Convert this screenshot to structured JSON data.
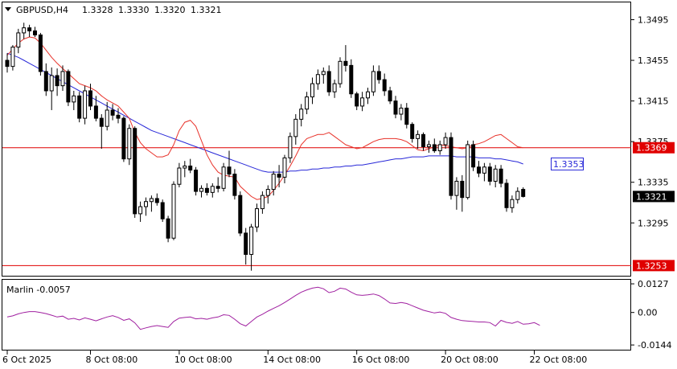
{
  "header": {
    "symbol": "GBPUSD,H4",
    "open": "1.3328",
    "high": "1.3330",
    "low": "1.3320",
    "close": "1.3321"
  },
  "colors": {
    "bull_candle": "#ffffff",
    "bear_candle": "#000000",
    "ma_fast": "#e8322a",
    "ma_slow": "#2828d8",
    "hline": "#e00000",
    "oscillator": "#a020a0",
    "price_label_bg": "#000000",
    "hline_label_bg": "#e00000",
    "ma_label_border": "#2828d8"
  },
  "price_axis": {
    "ticks": [
      "1.3495",
      "1.3455",
      "1.3415",
      "1.3375",
      "1.3335",
      "1.3295"
    ],
    "tick_values": [
      1.3495,
      1.3455,
      1.3415,
      1.3375,
      1.3335,
      1.3295
    ],
    "range": [
      1.3243,
      1.3512
    ]
  },
  "hlines": [
    {
      "value": 1.3369,
      "label": "1.3369"
    },
    {
      "value": 1.3253,
      "label": "1.3253"
    }
  ],
  "current_price": {
    "value": 1.3321,
    "label": "1.3321"
  },
  "ma_slow_label": {
    "value": 1.3353,
    "label": "1.3353"
  },
  "indicator": {
    "name": "Marlin -0.0057",
    "ticks": [
      "0.0127",
      "0.00",
      "-0.0144"
    ],
    "tick_values": [
      0.0127,
      0.0,
      -0.0144
    ],
    "range": [
      -0.0165,
      0.0145
    ]
  },
  "time_axis": {
    "labels": [
      "6 Oct 2025",
      "8 Oct 08:00",
      "10 Oct 08:00",
      "14 Oct 08:00",
      "16 Oct 08:00",
      "20 Oct 08:00",
      "22 Oct 08:00"
    ],
    "label_bars": [
      0,
      15,
      31,
      47,
      63,
      79,
      95
    ]
  },
  "chart_data": {
    "type": "candlestick",
    "series_ohlc": [
      [
        1.3455,
        1.3462,
        1.3443,
        1.3449
      ],
      [
        1.3449,
        1.347,
        1.3445,
        1.3468
      ],
      [
        1.3468,
        1.3486,
        1.3462,
        1.3482
      ],
      [
        1.3482,
        1.3492,
        1.3476,
        1.3487
      ],
      [
        1.3487,
        1.349,
        1.3478,
        1.3484
      ],
      [
        1.3484,
        1.3488,
        1.3478,
        1.348
      ],
      [
        1.348,
        1.3482,
        1.344,
        1.3444
      ],
      [
        1.3444,
        1.3452,
        1.342,
        1.3425
      ],
      [
        1.3425,
        1.3448,
        1.3406,
        1.344
      ],
      [
        1.344,
        1.3447,
        1.342,
        1.343
      ],
      [
        1.343,
        1.345,
        1.3425,
        1.3444
      ],
      [
        1.3444,
        1.3446,
        1.341,
        1.3414
      ],
      [
        1.3414,
        1.3425,
        1.3406,
        1.342
      ],
      [
        1.342,
        1.3424,
        1.3394,
        1.3398
      ],
      [
        1.3398,
        1.343,
        1.3392,
        1.3425
      ],
      [
        1.3425,
        1.3432,
        1.3406,
        1.341
      ],
      [
        1.341,
        1.342,
        1.3395,
        1.3398
      ],
      [
        1.3398,
        1.3402,
        1.3368,
        1.339
      ],
      [
        1.339,
        1.3414,
        1.3386,
        1.3406
      ],
      [
        1.3406,
        1.3412,
        1.3396,
        1.3401
      ],
      [
        1.3401,
        1.3408,
        1.3393,
        1.3398
      ],
      [
        1.3398,
        1.34,
        1.3355,
        1.3358
      ],
      [
        1.3358,
        1.3392,
        1.3352,
        1.3388
      ],
      [
        1.3388,
        1.339,
        1.33,
        1.3304
      ],
      [
        1.3304,
        1.3316,
        1.3296,
        1.3311
      ],
      [
        1.3311,
        1.332,
        1.3302,
        1.3316
      ],
      [
        1.3316,
        1.3322,
        1.3306,
        1.3319
      ],
      [
        1.3319,
        1.3324,
        1.3312,
        1.3315
      ],
      [
        1.3315,
        1.3318,
        1.3296,
        1.3299
      ],
      [
        1.3299,
        1.3302,
        1.3276,
        1.328
      ],
      [
        1.328,
        1.3336,
        1.3278,
        1.3333
      ],
      [
        1.3333,
        1.3354,
        1.333,
        1.3349
      ],
      [
        1.3349,
        1.3356,
        1.334,
        1.3351
      ],
      [
        1.3351,
        1.3358,
        1.3344,
        1.3347
      ],
      [
        1.3347,
        1.335,
        1.3322,
        1.3326
      ],
      [
        1.3326,
        1.3332,
        1.332,
        1.3329
      ],
      [
        1.3329,
        1.3334,
        1.3322,
        1.3325
      ],
      [
        1.3325,
        1.3334,
        1.332,
        1.3331
      ],
      [
        1.3331,
        1.334,
        1.3325,
        1.3329
      ],
      [
        1.3329,
        1.3354,
        1.3326,
        1.335
      ],
      [
        1.335,
        1.3366,
        1.334,
        1.3343
      ],
      [
        1.3343,
        1.3348,
        1.3318,
        1.3322
      ],
      [
        1.3322,
        1.3326,
        1.3282,
        1.3285
      ],
      [
        1.3285,
        1.329,
        1.3254,
        1.3264
      ],
      [
        1.3264,
        1.3294,
        1.3248,
        1.3291
      ],
      [
        1.3291,
        1.3314,
        1.3286,
        1.3309
      ],
      [
        1.3309,
        1.3326,
        1.3304,
        1.3322
      ],
      [
        1.3322,
        1.3332,
        1.3314,
        1.3328
      ],
      [
        1.3328,
        1.3346,
        1.3322,
        1.3343
      ],
      [
        1.3343,
        1.3352,
        1.333,
        1.334
      ],
      [
        1.334,
        1.3362,
        1.3334,
        1.3359
      ],
      [
        1.3359,
        1.3384,
        1.3354,
        1.338
      ],
      [
        1.338,
        1.3402,
        1.3372,
        1.3397
      ],
      [
        1.3397,
        1.3412,
        1.339,
        1.3407
      ],
      [
        1.3407,
        1.3424,
        1.3402,
        1.3419
      ],
      [
        1.3419,
        1.3438,
        1.3412,
        1.3432
      ],
      [
        1.3432,
        1.3446,
        1.3426,
        1.3441
      ],
      [
        1.3441,
        1.3448,
        1.3432,
        1.3444
      ],
      [
        1.3444,
        1.345,
        1.342,
        1.3424
      ],
      [
        1.3424,
        1.3436,
        1.3418,
        1.3432
      ],
      [
        1.3432,
        1.3458,
        1.3428,
        1.3454
      ],
      [
        1.3454,
        1.347,
        1.3444,
        1.345
      ],
      [
        1.345,
        1.3456,
        1.3418,
        1.3422
      ],
      [
        1.3422,
        1.3424,
        1.3406,
        1.341
      ],
      [
        1.341,
        1.3424,
        1.3405,
        1.3418
      ],
      [
        1.3418,
        1.3428,
        1.3412,
        1.3424
      ],
      [
        1.3424,
        1.345,
        1.342,
        1.3444
      ],
      [
        1.3444,
        1.345,
        1.3432,
        1.3436
      ],
      [
        1.3436,
        1.3442,
        1.342,
        1.3425
      ],
      [
        1.3425,
        1.3429,
        1.3412,
        1.3415
      ],
      [
        1.3415,
        1.342,
        1.3398,
        1.3402
      ],
      [
        1.3402,
        1.3412,
        1.3396,
        1.3408
      ],
      [
        1.3408,
        1.3413,
        1.3388,
        1.3392
      ],
      [
        1.3392,
        1.3394,
        1.3374,
        1.3378
      ],
      [
        1.3378,
        1.3386,
        1.3368,
        1.3382
      ],
      [
        1.3382,
        1.3384,
        1.3366,
        1.337
      ],
      [
        1.337,
        1.3376,
        1.3364,
        1.3372
      ],
      [
        1.3372,
        1.3378,
        1.3364,
        1.3366
      ],
      [
        1.3366,
        1.3376,
        1.3362,
        1.3372
      ],
      [
        1.3372,
        1.3384,
        1.3368,
        1.3379
      ],
      [
        1.3379,
        1.3384,
        1.3318,
        1.3322
      ],
      [
        1.3322,
        1.334,
        1.3308,
        1.3336
      ],
      [
        1.3336,
        1.3342,
        1.3306,
        1.332
      ],
      [
        1.332,
        1.3376,
        1.3318,
        1.3372
      ],
      [
        1.3372,
        1.3376,
        1.3346,
        1.335
      ],
      [
        1.335,
        1.3356,
        1.334,
        1.3344
      ],
      [
        1.3344,
        1.3354,
        1.3336,
        1.335
      ],
      [
        1.335,
        1.3354,
        1.3332,
        1.3336
      ],
      [
        1.3336,
        1.3352,
        1.333,
        1.3348
      ],
      [
        1.3348,
        1.3352,
        1.333,
        1.3334
      ],
      [
        1.3334,
        1.3338,
        1.3306,
        1.331
      ],
      [
        1.331,
        1.3322,
        1.3305,
        1.3318
      ],
      [
        1.3318,
        1.333,
        1.3314,
        1.3326
      ],
      [
        1.3328,
        1.333,
        1.332,
        1.3321
      ]
    ],
    "ma_slow": [
      1.3462,
      1.346,
      1.3458,
      1.3455,
      1.3452,
      1.3449,
      1.3446,
      1.3443,
      1.344,
      1.3437,
      1.3434,
      1.3431,
      1.3428,
      1.3425,
      1.3422,
      1.3419,
      1.3416,
      1.3413,
      1.341,
      1.3407,
      1.3404,
      1.3401,
      1.3398,
      1.3395,
      1.3392,
      1.3389,
      1.3386,
      1.3384,
      1.3382,
      1.338,
      1.3378,
      1.3376,
      1.3374,
      1.3372,
      1.337,
      1.3368,
      1.3366,
      1.3364,
      1.3362,
      1.336,
      1.3358,
      1.3356,
      1.3354,
      1.3352,
      1.335,
      1.3348,
      1.3346,
      1.3345,
      1.3345,
      1.3345,
      1.3345,
      1.3346,
      1.3346,
      1.3347,
      1.3347,
      1.3348,
      1.3348,
      1.3349,
      1.3349,
      1.335,
      1.335,
      1.3351,
      1.3351,
      1.3352,
      1.3352,
      1.3353,
      1.3354,
      1.3355,
      1.3356,
      1.3357,
      1.3358,
      1.3358,
      1.3359,
      1.336,
      1.336,
      1.336,
      1.3361,
      1.3361,
      1.3361,
      1.3361,
      1.3361,
      1.336,
      1.336,
      1.336,
      1.336,
      1.3359,
      1.3359,
      1.3359,
      1.3358,
      1.3358,
      1.3357,
      1.3356,
      1.3355,
      1.3353
    ],
    "ma_fast": [
      1.346,
      1.3466,
      1.3472,
      1.3476,
      1.3478,
      1.3477,
      1.3472,
      1.3465,
      1.3458,
      1.3452,
      1.3447,
      1.3442,
      1.3437,
      1.3432,
      1.343,
      1.3428,
      1.3425,
      1.342,
      1.3416,
      1.3413,
      1.341,
      1.3404,
      1.3398,
      1.3384,
      1.3374,
      1.3368,
      1.3364,
      1.336,
      1.336,
      1.3362,
      1.3372,
      1.3386,
      1.3394,
      1.3396,
      1.339,
      1.3376,
      1.3362,
      1.3352,
      1.3345,
      1.3342,
      1.3341,
      1.334,
      1.3331,
      1.3326,
      1.3321,
      1.3318,
      1.3319,
      1.3321,
      1.3327,
      1.3334,
      1.3342,
      1.3351,
      1.3361,
      1.3372,
      1.3378,
      1.338,
      1.3382,
      1.3382,
      1.3384,
      1.338,
      1.3376,
      1.3372,
      1.337,
      1.3368,
      1.3369,
      1.3372,
      1.3375,
      1.3377,
      1.3378,
      1.3378,
      1.3378,
      1.3377,
      1.3375,
      1.3371,
      1.3367,
      1.3366,
      1.3368,
      1.337,
      1.3372,
      1.3371,
      1.337,
      1.3369,
      1.3368,
      1.3369,
      1.3372,
      1.3373,
      1.3375,
      1.3378,
      1.3381,
      1.3382,
      1.3378,
      1.3374,
      1.337,
      1.3369
    ],
    "oscillator": [
      -0.002,
      -0.0015,
      -0.0006,
      0.0,
      0.0004,
      0.0004,
      0.0,
      -0.0005,
      -0.0012,
      -0.002,
      -0.0016,
      -0.003,
      -0.0026,
      -0.0033,
      -0.0024,
      -0.003,
      -0.0037,
      -0.0028,
      -0.002,
      -0.0014,
      -0.0022,
      -0.0035,
      -0.0028,
      -0.0046,
      -0.0075,
      -0.0068,
      -0.0062,
      -0.0058,
      -0.0062,
      -0.0066,
      -0.004,
      -0.0025,
      -0.0022,
      -0.002,
      -0.0028,
      -0.0026,
      -0.003,
      -0.0024,
      -0.002,
      -0.001,
      -0.0013,
      -0.003,
      -0.005,
      -0.006,
      -0.004,
      -0.002,
      -0.0008,
      0.0006,
      0.0018,
      0.003,
      0.0044,
      0.006,
      0.0076,
      0.009,
      0.01,
      0.0108,
      0.0112,
      0.0105,
      0.0088,
      0.0094,
      0.0108,
      0.0104,
      0.009,
      0.0078,
      0.0076,
      0.0078,
      0.0082,
      0.0075,
      0.006,
      0.0042,
      0.004,
      0.0044,
      0.004,
      0.003,
      0.002,
      0.001,
      0.0004,
      -0.0002,
      0.0002,
      -0.0004,
      -0.0022,
      -0.003,
      -0.0036,
      -0.0038,
      -0.004,
      -0.0042,
      -0.0042,
      -0.0045,
      -0.006,
      -0.0035,
      -0.0044,
      -0.0048,
      -0.004,
      -0.0052,
      -0.005,
      -0.0045,
      -0.0057
    ],
    "title": "GBPUSD,H4"
  }
}
